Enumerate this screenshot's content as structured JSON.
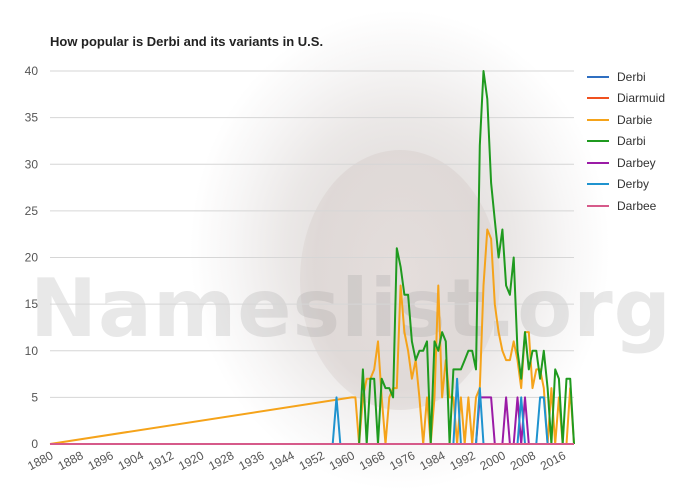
{
  "chart_data": {
    "type": "line",
    "title": "How popular is Derbi and its variants in U.S.",
    "xlabel": "",
    "ylabel": "",
    "xlim": [
      1880,
      2019
    ],
    "ylim": [
      0,
      40
    ],
    "yticks": [
      0,
      5,
      10,
      15,
      20,
      25,
      30,
      35,
      40
    ],
    "xticks": [
      1880,
      1888,
      1896,
      1904,
      1912,
      1920,
      1928,
      1936,
      1944,
      1952,
      1960,
      1968,
      1976,
      1984,
      1992,
      2000,
      2008,
      2016
    ],
    "grid": true,
    "legend_position": "right",
    "watermark": "Nameslist.org",
    "series": [
      {
        "name": "Derbi",
        "color": "#2f6fc1",
        "points": []
      },
      {
        "name": "Diarmuid",
        "color": "#f0511f",
        "points": []
      },
      {
        "name": "Darbie",
        "color": "#f5a31a",
        "points": [
          [
            1960,
            5
          ],
          [
            1961,
            5
          ],
          [
            1962,
            0
          ],
          [
            1963,
            5
          ],
          [
            1964,
            7
          ],
          [
            1965,
            7
          ],
          [
            1966,
            8
          ],
          [
            1967,
            11
          ],
          [
            1968,
            5
          ],
          [
            1969,
            0
          ],
          [
            1970,
            5
          ],
          [
            1971,
            6
          ],
          [
            1972,
            6
          ],
          [
            1973,
            17
          ],
          [
            1974,
            12
          ],
          [
            1975,
            10
          ],
          [
            1976,
            7
          ],
          [
            1977,
            9
          ],
          [
            1978,
            5
          ],
          [
            1979,
            0
          ],
          [
            1980,
            5
          ],
          [
            1981,
            0
          ],
          [
            1982,
            5
          ],
          [
            1983,
            17
          ],
          [
            1984,
            5
          ],
          [
            1985,
            9
          ],
          [
            1986,
            5
          ],
          [
            1987,
            5
          ],
          [
            1988,
            0
          ],
          [
            1989,
            5
          ],
          [
            1990,
            0
          ],
          [
            1991,
            5
          ],
          [
            1992,
            0
          ],
          [
            1993,
            5
          ],
          [
            1994,
            6
          ],
          [
            1995,
            17
          ],
          [
            1996,
            23
          ],
          [
            1997,
            22
          ],
          [
            1998,
            15
          ],
          [
            1999,
            12
          ],
          [
            2000,
            10
          ],
          [
            2001,
            9
          ],
          [
            2002,
            9
          ],
          [
            2003,
            11
          ],
          [
            2004,
            9
          ],
          [
            2005,
            6
          ],
          [
            2006,
            12
          ],
          [
            2007,
            12
          ],
          [
            2008,
            6
          ],
          [
            2009,
            8
          ],
          [
            2010,
            8
          ],
          [
            2011,
            6
          ],
          [
            2012,
            0
          ],
          [
            2013,
            6
          ],
          [
            2014,
            0
          ],
          [
            2015,
            5
          ],
          [
            2016,
            0
          ],
          [
            2017,
            0
          ],
          [
            2018,
            6
          ],
          [
            2019,
            0
          ]
        ]
      },
      {
        "name": "Darbi",
        "color": "#1f9a1f",
        "points": [
          [
            1960,
            0
          ],
          [
            1962,
            0
          ],
          [
            1963,
            8
          ],
          [
            1964,
            0
          ],
          [
            1965,
            7
          ],
          [
            1966,
            7
          ],
          [
            1967,
            0
          ],
          [
            1968,
            7
          ],
          [
            1969,
            6
          ],
          [
            1970,
            6
          ],
          [
            1971,
            5
          ],
          [
            1972,
            21
          ],
          [
            1973,
            19
          ],
          [
            1974,
            16
          ],
          [
            1975,
            16
          ],
          [
            1976,
            11
          ],
          [
            1977,
            9
          ],
          [
            1978,
            10
          ],
          [
            1979,
            10
          ],
          [
            1980,
            11
          ],
          [
            1981,
            0
          ],
          [
            1982,
            11
          ],
          [
            1983,
            10
          ],
          [
            1984,
            12
          ],
          [
            1985,
            11
          ],
          [
            1986,
            0
          ],
          [
            1987,
            8
          ],
          [
            1988,
            8
          ],
          [
            1989,
            8
          ],
          [
            1990,
            9
          ],
          [
            1991,
            10
          ],
          [
            1992,
            10
          ],
          [
            1993,
            8
          ],
          [
            1994,
            32
          ],
          [
            1995,
            40
          ],
          [
            1996,
            37
          ],
          [
            1997,
            28
          ],
          [
            1998,
            24
          ],
          [
            1999,
            20
          ],
          [
            2000,
            23
          ],
          [
            2001,
            17
          ],
          [
            2002,
            16
          ],
          [
            2003,
            20
          ],
          [
            2004,
            10
          ],
          [
            2005,
            7
          ],
          [
            2006,
            12
          ],
          [
            2007,
            8
          ],
          [
            2008,
            10
          ],
          [
            2009,
            10
          ],
          [
            2010,
            7
          ],
          [
            2011,
            10
          ],
          [
            2012,
            6
          ],
          [
            2013,
            0
          ],
          [
            2014,
            8
          ],
          [
            2015,
            7
          ],
          [
            2016,
            0
          ],
          [
            2017,
            7
          ],
          [
            2018,
            7
          ],
          [
            2019,
            0
          ]
        ]
      },
      {
        "name": "Darbey",
        "color": "#9b1ba6",
        "points": [
          [
            1993,
            0
          ],
          [
            1994,
            5
          ],
          [
            1995,
            5
          ],
          [
            1996,
            5
          ],
          [
            1997,
            5
          ],
          [
            1998,
            0
          ],
          [
            2000,
            0
          ],
          [
            2001,
            5
          ],
          [
            2002,
            0
          ],
          [
            2003,
            0
          ],
          [
            2004,
            5
          ],
          [
            2005,
            0
          ],
          [
            2006,
            5
          ],
          [
            2007,
            0
          ]
        ]
      },
      {
        "name": "Derby",
        "color": "#1f93cf",
        "points": [
          [
            1955,
            0
          ],
          [
            1956,
            5
          ],
          [
            1957,
            0
          ],
          [
            1987,
            0
          ],
          [
            1988,
            7
          ],
          [
            1989,
            0
          ],
          [
            1993,
            0
          ],
          [
            1994,
            6
          ],
          [
            1995,
            0
          ],
          [
            2004,
            0
          ],
          [
            2005,
            5
          ],
          [
            2006,
            0
          ],
          [
            2009,
            0
          ],
          [
            2010,
            5
          ],
          [
            2011,
            5
          ],
          [
            2012,
            0
          ]
        ]
      },
      {
        "name": "Darbee",
        "color": "#d65a8a",
        "points": []
      }
    ]
  }
}
